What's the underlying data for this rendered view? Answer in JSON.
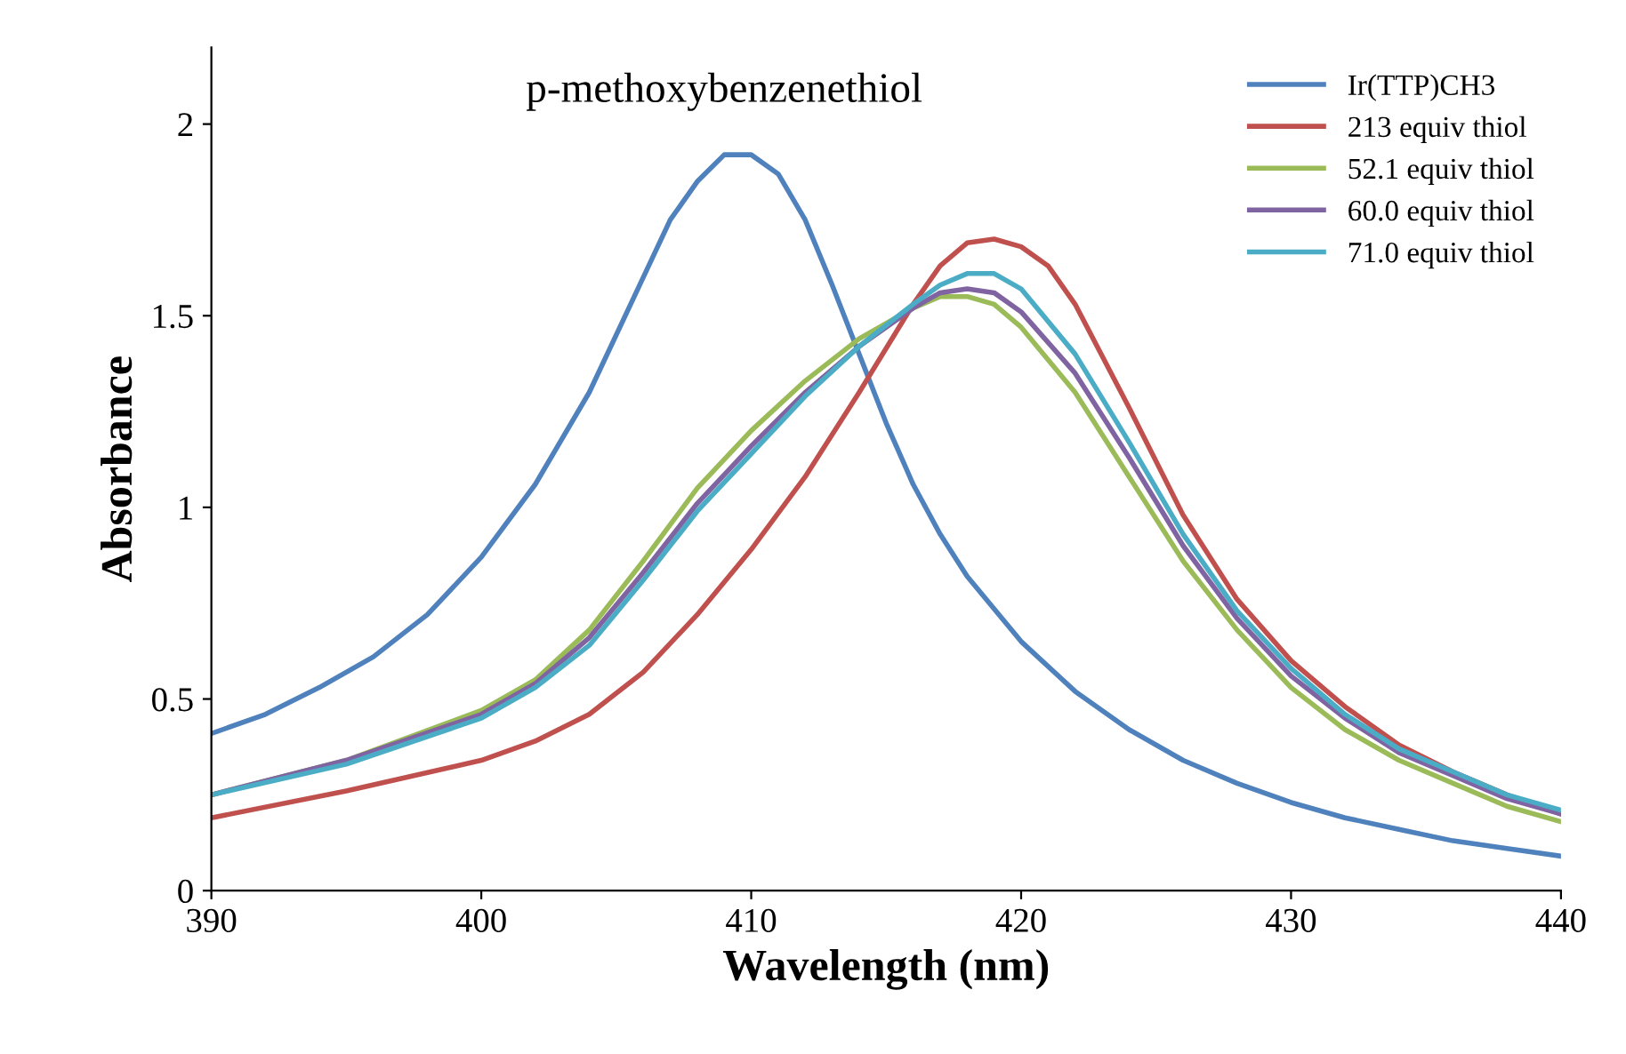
{
  "chart_data": {
    "type": "line",
    "title": "p-methoxybenzenethiol",
    "xlabel": "Wavelength (nm)",
    "ylabel": "Absorbance",
    "xlim": [
      390,
      440
    ],
    "xticks": [
      390,
      400,
      410,
      420,
      430,
      440
    ],
    "ylim": [
      0,
      2.2
    ],
    "yticks": [
      0,
      0.5,
      1,
      1.5,
      2
    ],
    "grid": false,
    "legend": "top right",
    "marker": "none",
    "line_style": "solid",
    "series": [
      {
        "name": "Ir(TTP)CH3",
        "color": "#4f81bd",
        "x": [
          390,
          392,
          394,
          396,
          398,
          400,
          402,
          404,
          406,
          407,
          408,
          409,
          410,
          411,
          412,
          413,
          414,
          415,
          416,
          417,
          418,
          420,
          422,
          424,
          426,
          428,
          430,
          432,
          434,
          436,
          438,
          440
        ],
        "values": [
          0.41,
          0.46,
          0.53,
          0.61,
          0.72,
          0.87,
          1.06,
          1.3,
          1.6,
          1.75,
          1.85,
          1.92,
          1.92,
          1.87,
          1.75,
          1.58,
          1.4,
          1.22,
          1.06,
          0.93,
          0.82,
          0.65,
          0.52,
          0.42,
          0.34,
          0.28,
          0.23,
          0.19,
          0.16,
          0.13,
          0.11,
          0.09
        ]
      },
      {
        "name": "213 equiv thiol",
        "color": "#c0504d",
        "x": [
          390,
          395,
          400,
          402,
          404,
          406,
          408,
          410,
          412,
          414,
          416,
          417,
          418,
          419,
          420,
          421,
          422,
          424,
          426,
          428,
          430,
          432,
          434,
          436,
          438,
          440
        ],
        "values": [
          0.19,
          0.26,
          0.34,
          0.39,
          0.46,
          0.57,
          0.72,
          0.89,
          1.08,
          1.3,
          1.53,
          1.63,
          1.69,
          1.7,
          1.68,
          1.63,
          1.53,
          1.26,
          0.98,
          0.76,
          0.6,
          0.48,
          0.38,
          0.31,
          0.25,
          0.2
        ]
      },
      {
        "name": "52.1 equiv thiol",
        "color": "#9bbb59",
        "x": [
          390,
          395,
          400,
          402,
          404,
          406,
          408,
          410,
          412,
          414,
          416,
          417,
          418,
          419,
          420,
          422,
          424,
          426,
          428,
          430,
          432,
          434,
          436,
          438,
          440
        ],
        "values": [
          0.25,
          0.34,
          0.47,
          0.55,
          0.68,
          0.86,
          1.05,
          1.2,
          1.33,
          1.44,
          1.52,
          1.55,
          1.55,
          1.53,
          1.47,
          1.3,
          1.08,
          0.86,
          0.68,
          0.53,
          0.42,
          0.34,
          0.28,
          0.22,
          0.18
        ]
      },
      {
        "name": "60.0 equiv thiol",
        "color": "#8064a2",
        "x": [
          390,
          395,
          400,
          402,
          404,
          406,
          408,
          410,
          412,
          414,
          416,
          417,
          418,
          419,
          420,
          422,
          424,
          426,
          428,
          430,
          432,
          434,
          436,
          438,
          440
        ],
        "values": [
          0.25,
          0.34,
          0.46,
          0.54,
          0.66,
          0.83,
          1.01,
          1.16,
          1.3,
          1.42,
          1.52,
          1.56,
          1.57,
          1.56,
          1.51,
          1.35,
          1.13,
          0.9,
          0.71,
          0.56,
          0.45,
          0.36,
          0.3,
          0.24,
          0.2
        ]
      },
      {
        "name": "71.0 equiv thiol",
        "color": "#4bacc6",
        "x": [
          390,
          395,
          400,
          402,
          404,
          406,
          408,
          410,
          412,
          414,
          416,
          417,
          418,
          419,
          420,
          422,
          424,
          426,
          428,
          430,
          432,
          434,
          436,
          438,
          440
        ],
        "values": [
          0.25,
          0.33,
          0.45,
          0.53,
          0.64,
          0.81,
          0.99,
          1.14,
          1.29,
          1.42,
          1.53,
          1.58,
          1.61,
          1.61,
          1.57,
          1.4,
          1.17,
          0.93,
          0.73,
          0.58,
          0.46,
          0.37,
          0.31,
          0.25,
          0.21
        ]
      }
    ]
  }
}
